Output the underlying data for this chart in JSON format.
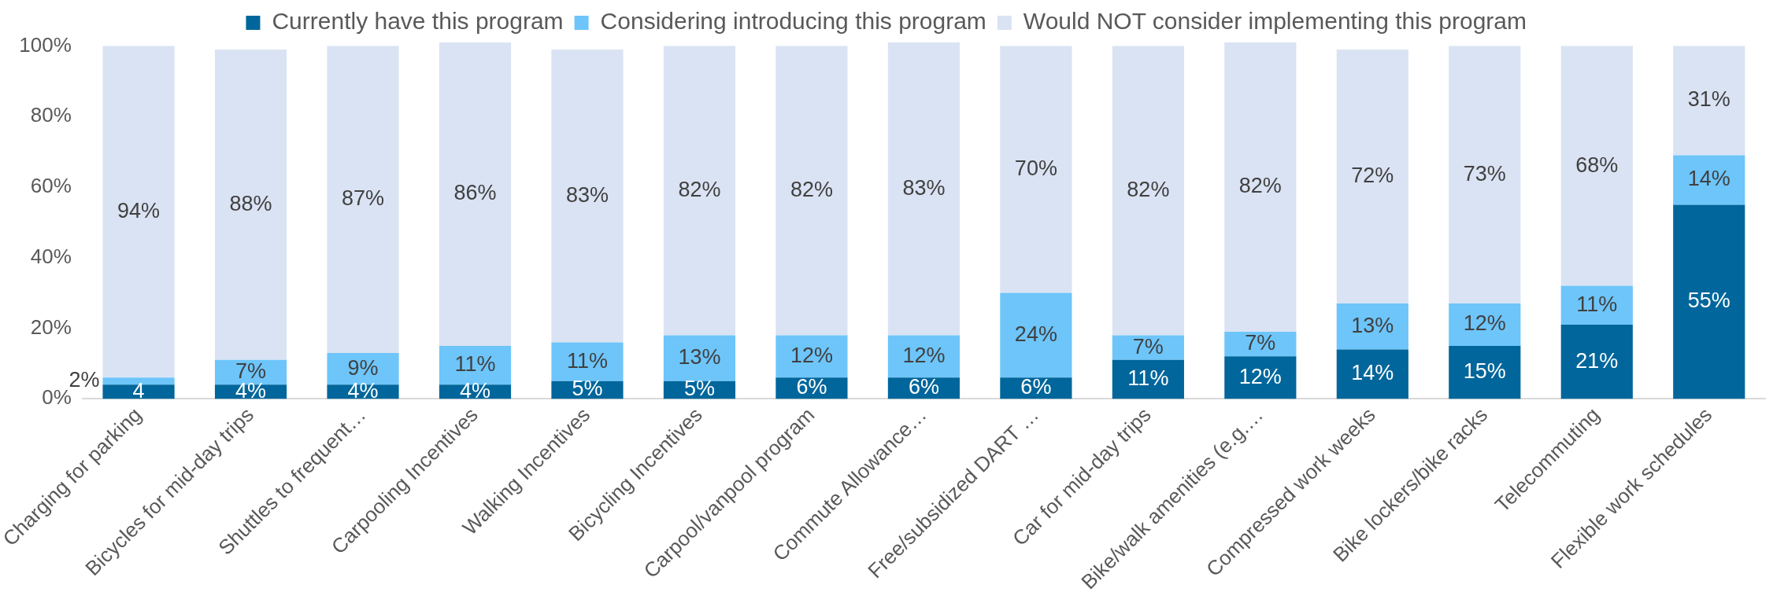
{
  "chart_data": {
    "type": "bar",
    "stacked": true,
    "legend": "top",
    "grid": false,
    "categories": [
      "Charging for parking",
      "Bicycles for mid-day trips",
      "Shuttles to frequent…",
      "Carpooling Incentives",
      "Walking Incentives",
      "Bicycling Incentives",
      "Carpool/vanpool program",
      "Commute Allowance…",
      "Free/subsidized DART …",
      "Car for mid-day trips",
      "Bike/walk amenities (e.g.…",
      "Compressed work weeks",
      "Bike lockers/bike racks",
      "Telecommuting",
      "Flexible work schedules"
    ],
    "ylim": [
      0,
      101
    ],
    "yticks": [
      {
        "value": 0,
        "label": "0%"
      },
      {
        "value": 20,
        "label": "20%"
      },
      {
        "value": 40,
        "label": "40%"
      },
      {
        "value": 60,
        "label": "60%"
      },
      {
        "value": 80,
        "label": "80%"
      },
      {
        "value": 100,
        "label": "100%"
      }
    ],
    "series": [
      {
        "name": "Currently have this program",
        "color": "#00669b",
        "values": [
          4,
          4,
          4,
          4,
          5,
          5,
          6,
          6,
          6,
          11,
          12,
          14,
          15,
          21,
          55
        ],
        "value_labels": [
          "4",
          "4%",
          "4%",
          "4%",
          "5%",
          "5%",
          "6%",
          "6%",
          "6%",
          "11%",
          "12%",
          "14%",
          "15%",
          "21%",
          "55%"
        ]
      },
      {
        "name": "Considering introducing this program",
        "color": "#6dc5fa",
        "values": [
          2,
          7,
          9,
          11,
          11,
          13,
          12,
          12,
          24,
          7,
          7,
          13,
          12,
          11,
          14
        ],
        "value_labels": [
          "2%",
          "7%",
          "9%",
          "11%",
          "11%",
          "13%",
          "12%",
          "12%",
          "24%",
          "7%",
          "7%",
          "13%",
          "12%",
          "11%",
          "14%"
        ]
      },
      {
        "name": "Would NOT consider implementing this program",
        "color": "#dae3f3",
        "values": [
          94,
          88,
          87,
          86,
          83,
          82,
          82,
          83,
          70,
          82,
          82,
          72,
          73,
          68,
          31
        ],
        "value_labels": [
          "94%",
          "88%",
          "87%",
          "86%",
          "83%",
          "82%",
          "82%",
          "83%",
          "70%",
          "82%",
          "82%",
          "72%",
          "73%",
          "68%",
          "31%"
        ]
      }
    ]
  }
}
